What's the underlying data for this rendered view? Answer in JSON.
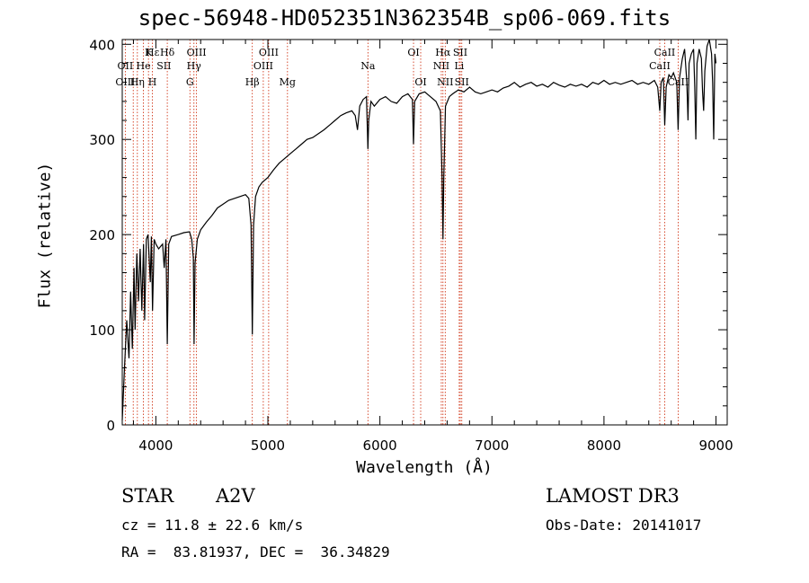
{
  "title": "spec-56948-HD052351N362354B_sp06-069.fits",
  "info": {
    "class_label": "STAR",
    "subclass": "A2V",
    "survey": "LAMOST DR3",
    "cz": "cz = 11.8 ± 22.6 km/s",
    "obs_date": "Obs-Date: 20141017",
    "coords": "RA =  83.81937, DEC =  36.34829"
  },
  "chart_data": {
    "type": "line",
    "title": "spec-56948-HD052351N362354B_sp06-069.fits",
    "xlabel": "Wavelength (Å)",
    "ylabel": "Flux (relative)",
    "xlim": [
      3700,
      9100
    ],
    "ylim": [
      0,
      405
    ],
    "xticks": [
      4000,
      5000,
      6000,
      7000,
      8000,
      9000
    ],
    "yticks": [
      0,
      100,
      200,
      300,
      400
    ],
    "grid": false,
    "series": [
      {
        "color": "#000000",
        "points": [
          [
            3700,
            5
          ],
          [
            3720,
            60
          ],
          [
            3740,
            110
          ],
          [
            3760,
            70
          ],
          [
            3775,
            140
          ],
          [
            3790,
            80
          ],
          [
            3805,
            165
          ],
          [
            3815,
            100
          ],
          [
            3830,
            180
          ],
          [
            3845,
            130
          ],
          [
            3860,
            185
          ],
          [
            3875,
            120
          ],
          [
            3890,
            190
          ],
          [
            3900,
            110
          ],
          [
            3915,
            195
          ],
          [
            3930,
            200
          ],
          [
            3950,
            150
          ],
          [
            3960,
            198
          ],
          [
            3970,
            120
          ],
          [
            3985,
            195
          ],
          [
            4000,
            190
          ],
          [
            4025,
            185
          ],
          [
            4045,
            188
          ],
          [
            4060,
            190
          ],
          [
            4075,
            165
          ],
          [
            4090,
            195
          ],
          [
            4102,
            85
          ],
          [
            4115,
            190
          ],
          [
            4140,
            198
          ],
          [
            4200,
            200
          ],
          [
            4250,
            202
          ],
          [
            4300,
            203
          ],
          [
            4320,
            195
          ],
          [
            4335,
            175
          ],
          [
            4341,
            85
          ],
          [
            4350,
            170
          ],
          [
            4370,
            195
          ],
          [
            4400,
            205
          ],
          [
            4450,
            213
          ],
          [
            4500,
            220
          ],
          [
            4550,
            228
          ],
          [
            4600,
            232
          ],
          [
            4650,
            236
          ],
          [
            4700,
            238
          ],
          [
            4750,
            240
          ],
          [
            4800,
            242
          ],
          [
            4830,
            238
          ],
          [
            4850,
            210
          ],
          [
            4861,
            95
          ],
          [
            4872,
            210
          ],
          [
            4890,
            240
          ],
          [
            4920,
            250
          ],
          [
            4950,
            255
          ],
          [
            5000,
            260
          ],
          [
            5050,
            268
          ],
          [
            5100,
            275
          ],
          [
            5150,
            280
          ],
          [
            5200,
            285
          ],
          [
            5250,
            290
          ],
          [
            5300,
            295
          ],
          [
            5350,
            300
          ],
          [
            5400,
            302
          ],
          [
            5450,
            306
          ],
          [
            5500,
            310
          ],
          [
            5550,
            315
          ],
          [
            5600,
            320
          ],
          [
            5650,
            325
          ],
          [
            5700,
            328
          ],
          [
            5750,
            330
          ],
          [
            5780,
            325
          ],
          [
            5800,
            310
          ],
          [
            5820,
            335
          ],
          [
            5850,
            342
          ],
          [
            5880,
            345
          ],
          [
            5893,
            290
          ],
          [
            5900,
            320
          ],
          [
            5920,
            340
          ],
          [
            5950,
            335
          ],
          [
            6000,
            342
          ],
          [
            6050,
            345
          ],
          [
            6100,
            340
          ],
          [
            6150,
            338
          ],
          [
            6200,
            345
          ],
          [
            6250,
            348
          ],
          [
            6290,
            342
          ],
          [
            6300,
            295
          ],
          [
            6310,
            340
          ],
          [
            6350,
            348
          ],
          [
            6400,
            350
          ],
          [
            6450,
            345
          ],
          [
            6500,
            340
          ],
          [
            6540,
            330
          ],
          [
            6555,
            260
          ],
          [
            6563,
            195
          ],
          [
            6570,
            260
          ],
          [
            6585,
            335
          ],
          [
            6620,
            345
          ],
          [
            6650,
            348
          ],
          [
            6700,
            352
          ],
          [
            6750,
            350
          ],
          [
            6800,
            355
          ],
          [
            6850,
            350
          ],
          [
            6900,
            348
          ],
          [
            6950,
            350
          ],
          [
            7000,
            352
          ],
          [
            7050,
            350
          ],
          [
            7100,
            354
          ],
          [
            7150,
            356
          ],
          [
            7200,
            360
          ],
          [
            7250,
            355
          ],
          [
            7300,
            358
          ],
          [
            7350,
            360
          ],
          [
            7400,
            356
          ],
          [
            7450,
            358
          ],
          [
            7500,
            355
          ],
          [
            7550,
            360
          ],
          [
            7600,
            357
          ],
          [
            7650,
            355
          ],
          [
            7700,
            358
          ],
          [
            7750,
            356
          ],
          [
            7800,
            358
          ],
          [
            7850,
            355
          ],
          [
            7900,
            360
          ],
          [
            7950,
            358
          ],
          [
            8000,
            362
          ],
          [
            8050,
            358
          ],
          [
            8100,
            360
          ],
          [
            8150,
            358
          ],
          [
            8200,
            360
          ],
          [
            8250,
            362
          ],
          [
            8300,
            358
          ],
          [
            8350,
            360
          ],
          [
            8400,
            358
          ],
          [
            8450,
            362
          ],
          [
            8480,
            355
          ],
          [
            8498,
            330
          ],
          [
            8510,
            360
          ],
          [
            8530,
            365
          ],
          [
            8542,
            315
          ],
          [
            8555,
            355
          ],
          [
            8580,
            368
          ],
          [
            8600,
            365
          ],
          [
            8620,
            370
          ],
          [
            8650,
            360
          ],
          [
            8662,
            310
          ],
          [
            8675,
            365
          ],
          [
            8700,
            385
          ],
          [
            8720,
            395
          ],
          [
            8740,
            360
          ],
          [
            8750,
            320
          ],
          [
            8760,
            380
          ],
          [
            8780,
            390
          ],
          [
            8800,
            395
          ],
          [
            8810,
            355
          ],
          [
            8820,
            300
          ],
          [
            8830,
            380
          ],
          [
            8850,
            395
          ],
          [
            8870,
            385
          ],
          [
            8880,
            350
          ],
          [
            8890,
            330
          ],
          [
            8900,
            372
          ],
          [
            8920,
            398
          ],
          [
            8940,
            405
          ],
          [
            8960,
            390
          ],
          [
            8970,
            360
          ],
          [
            8980,
            300
          ],
          [
            8990,
            390
          ],
          [
            9000,
            380
          ]
        ]
      }
    ],
    "line_markers": [
      {
        "name": "Hε",
        "wl": 3970,
        "row": 0
      },
      {
        "name": "K",
        "wl": 3934,
        "row": 0
      },
      {
        "name": "Hδ",
        "wl": 4102,
        "row": 0
      },
      {
        "name": "OIII",
        "wl": 4363,
        "row": 0
      },
      {
        "name": "OIII",
        "wl": 5007,
        "row": 0
      },
      {
        "name": "OI",
        "wl": 6300,
        "row": 0
      },
      {
        "name": "Hα",
        "wl": 6563,
        "row": 0
      },
      {
        "name": "SII",
        "wl": 6717,
        "row": 0
      },
      {
        "name": "CaII",
        "wl": 8542,
        "row": 0
      },
      {
        "name": "OII",
        "wl": 3727,
        "row": 1
      },
      {
        "name": "He",
        "wl": 3889,
        "row": 1
      },
      {
        "name": "SII",
        "wl": 4072,
        "row": 1
      },
      {
        "name": "Hγ",
        "wl": 4340,
        "row": 1
      },
      {
        "name": "OIII",
        "wl": 4959,
        "row": 1
      },
      {
        "name": "NII",
        "wl": 6548,
        "row": 1
      },
      {
        "name": "Li",
        "wl": 6708,
        "row": 1
      },
      {
        "name": "CaII",
        "wl": 8498,
        "row": 1
      },
      {
        "name": "OIII",
        "wl": 3727,
        "row": 2
      },
      {
        "name": "Hη",
        "wl": 3835,
        "row": 2
      },
      {
        "name": "H",
        "wl": 3969,
        "row": 2
      },
      {
        "name": "G",
        "wl": 4304,
        "row": 2
      },
      {
        "name": "Hβ",
        "wl": 4861,
        "row": 2
      },
      {
        "name": "Mg",
        "wl": 5175,
        "row": 2
      },
      {
        "name": "Na",
        "wl": 5893,
        "row": 1
      },
      {
        "name": "OI",
        "wl": 6364,
        "row": 2
      },
      {
        "name": "NII",
        "wl": 6583,
        "row": 2
      },
      {
        "name": "SII",
        "wl": 6731,
        "row": 2
      },
      {
        "name": "CaII",
        "wl": 8662,
        "row": 2
      }
    ],
    "marker_lines_wl": [
      3727,
      3798,
      3835,
      3889,
      3934,
      3969,
      4102,
      4304,
      4340,
      4363,
      4861,
      4959,
      5007,
      5175,
      5893,
      6300,
      6364,
      6548,
      6563,
      6583,
      6708,
      6717,
      6731,
      8498,
      8542,
      8662
    ],
    "marker_line_color": "#cc2200"
  }
}
